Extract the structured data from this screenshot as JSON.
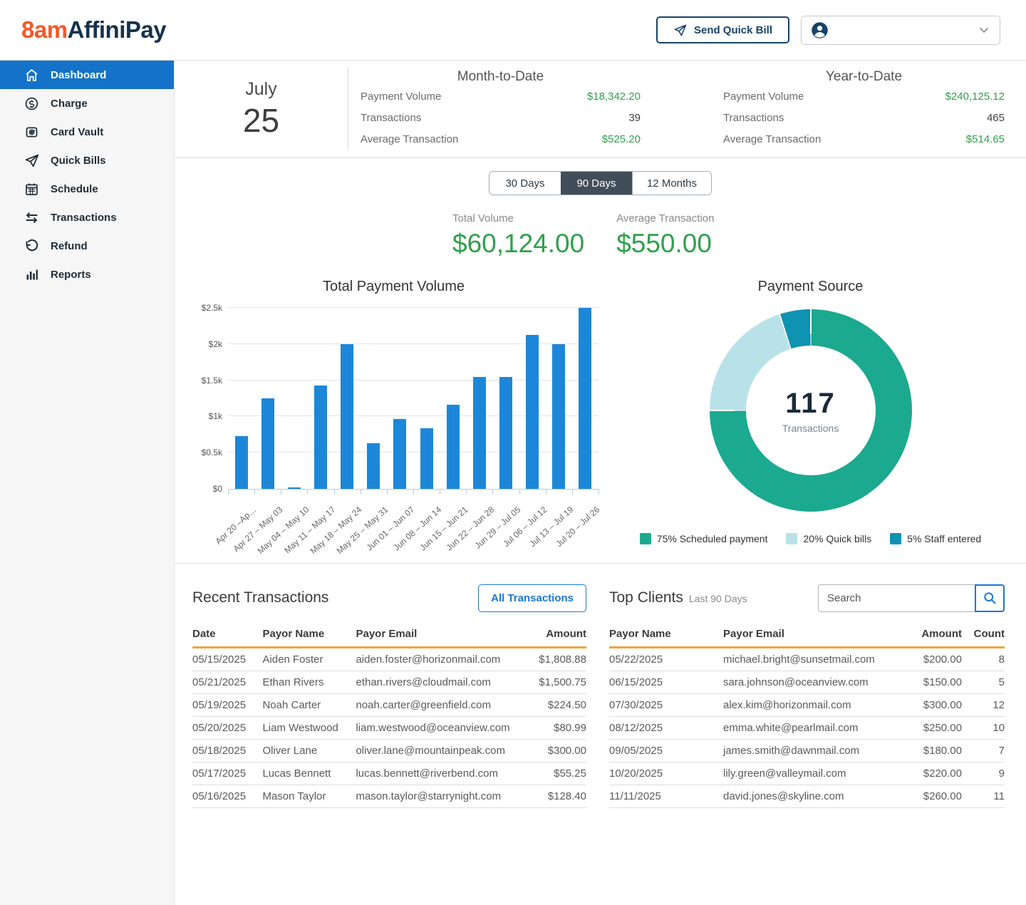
{
  "colors": {
    "brand_orange": "#f05a28",
    "brand_navy": "#16324a",
    "nav_active_blue": "#1473c8",
    "bar_blue": "#1c87d8",
    "money_green": "#2fa04a",
    "table_header_underline": "#f2a33c",
    "tab_active": "#414d59"
  },
  "header": {
    "logo_8am": "8am",
    "logo_affinipay": "AffiniPay",
    "send_quick_bill_label": "Send Quick Bill"
  },
  "sidebar": {
    "items": [
      {
        "label": "Dashboard",
        "icon": "home-icon",
        "active": true
      },
      {
        "label": "Charge",
        "icon": "dollar-circle-icon",
        "active": false
      },
      {
        "label": "Card Vault",
        "icon": "vault-icon",
        "active": false
      },
      {
        "label": "Quick Bills",
        "icon": "paper-plane-icon",
        "active": false
      },
      {
        "label": "Schedule",
        "icon": "calendar-icon",
        "active": false
      },
      {
        "label": "Transactions",
        "icon": "transfer-arrows-icon",
        "active": false
      },
      {
        "label": "Refund",
        "icon": "undo-icon",
        "active": false
      },
      {
        "label": "Reports",
        "icon": "bar-chart-icon",
        "active": false
      }
    ]
  },
  "date_panel": {
    "month": "July",
    "day": "25"
  },
  "stats": {
    "mtd": {
      "title": "Month-to-Date",
      "rows": [
        {
          "label": "Payment Volume",
          "value": "$18,342.20",
          "money": true
        },
        {
          "label": "Transactions",
          "value": "39",
          "money": false
        },
        {
          "label": "Average Transaction",
          "value": "$525.20",
          "money": true
        }
      ]
    },
    "ytd": {
      "title": "Year-to-Date",
      "rows": [
        {
          "label": "Payment Volume",
          "value": "$240,125.12",
          "money": true
        },
        {
          "label": "Transactions",
          "value": "465",
          "money": false
        },
        {
          "label": "Average Transaction",
          "value": "$514.65",
          "money": true
        }
      ]
    }
  },
  "range_tabs": {
    "options": [
      "30 Days",
      "90 Days",
      "12 Months"
    ],
    "active": "90 Days"
  },
  "summary": {
    "total_volume_label": "Total Volume",
    "total_volume_value": "$60,124.00",
    "average_label": "Average Transaction",
    "average_value": "$550.00"
  },
  "chart_data": [
    {
      "type": "bar",
      "title": "Total Payment Volume",
      "categories": [
        "Apr 20 –Ap…",
        "Apr 27 – May 03",
        "May 04 – May 10",
        "May 11 – May 17",
        "May 18 – May 24",
        "May 25 – May 31",
        "Jun 01 – Jun 07",
        "Jun 08 – Jun 14",
        "Jun 15 – Jun 21",
        "Jun 22 – Jun 28",
        "Jun 29 – Jul 05",
        "Jul 06 – Jul 12",
        "Jul 13 – Jul 19",
        "Jul 20 – Jul 26"
      ],
      "values": [
        730,
        1250,
        15,
        1430,
        2000,
        630,
        960,
        840,
        1160,
        1550,
        1550,
        2130,
        2000,
        2500
      ],
      "ylim": [
        0,
        2500
      ],
      "ytick_values": [
        0,
        500,
        1000,
        1500,
        2000,
        2500
      ],
      "ytick_labels": [
        "$0",
        "$0.5k",
        "$1k",
        "$1.5k",
        "$2k",
        "$2.5k"
      ],
      "grid": true,
      "bar_color": "#1c87d8"
    },
    {
      "type": "pie",
      "title": "Payment Source",
      "center_value": "117",
      "center_label": "Transactions",
      "segments": [
        {
          "label": "75% Scheduled payment",
          "pct": 75,
          "color": "#1ba98f"
        },
        {
          "label": "20% Quick bills",
          "pct": 20,
          "color": "#b9e2e8"
        },
        {
          "label": "5% Staff entered",
          "pct": 5,
          "color": "#0f93b3"
        }
      ],
      "legend_position": "bottom"
    }
  ],
  "recent_transactions": {
    "title": "Recent Transactions",
    "button_label": "All Transactions",
    "columns": [
      "Date",
      "Payor Name",
      "Payor Email",
      "Amount"
    ],
    "rows": [
      [
        "05/15/2025",
        "Aiden Foster",
        "aiden.foster@horizonmail.com",
        "$1,808.88"
      ],
      [
        "05/21/2025",
        "Ethan Rivers",
        "ethan.rivers@cloudmail.com",
        "$1,500.75"
      ],
      [
        "05/19/2025",
        "Noah Carter",
        "noah.carter@greenfield.com",
        "$224.50"
      ],
      [
        "05/20/2025",
        "Liam Westwood",
        "liam.westwood@oceanview.com",
        "$80.99"
      ],
      [
        "05/18/2025",
        "Oliver Lane",
        "oliver.lane@mountainpeak.com",
        "$300.00"
      ],
      [
        "05/17/2025",
        "Lucas Bennett",
        "lucas.bennett@riverbend.com",
        "$55.25"
      ],
      [
        "05/16/2025",
        "Mason Taylor",
        "mason.taylor@starrynight.com",
        "$128.40"
      ]
    ]
  },
  "top_clients": {
    "title": "Top Clients",
    "subtitle": "Last 90 Days",
    "search_placeholder": "Search",
    "columns": [
      "Payor Name",
      "Payor Email",
      "Amount",
      "Count"
    ],
    "rows": [
      [
        "05/22/2025",
        "michael.bright@sunsetmail.com",
        "$200.00",
        "8"
      ],
      [
        "06/15/2025",
        "sara.johnson@oceanview.com",
        "$150.00",
        "5"
      ],
      [
        "07/30/2025",
        "alex.kim@horizonmail.com",
        "$300.00",
        "12"
      ],
      [
        "08/12/2025",
        "emma.white@pearlmail.com",
        "$250.00",
        "10"
      ],
      [
        "09/05/2025",
        "james.smith@dawnmail.com",
        "$180.00",
        "7"
      ],
      [
        "10/20/2025",
        "lily.green@valleymail.com",
        "$220.00",
        "9"
      ],
      [
        "11/11/2025",
        "david.jones@skyline.com",
        "$260.00",
        "11"
      ]
    ]
  }
}
